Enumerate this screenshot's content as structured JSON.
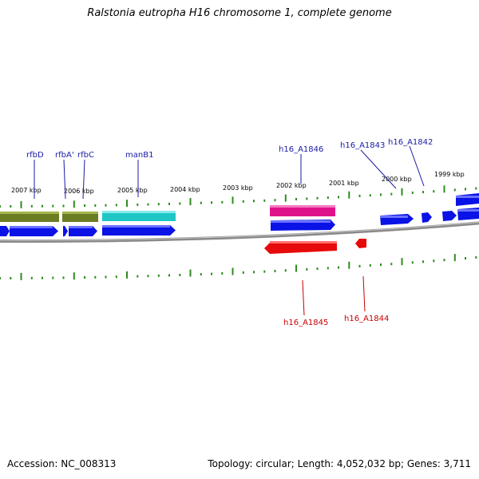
{
  "title": "Ralstonia eutropha H16 chromosome 1, complete genome",
  "footer": {
    "accession": "Accession: NC_008313",
    "summary": "Topology: circular; Length: 4,052,032 bp; Genes: 3,711"
  },
  "colors": {
    "backbone": "#8a8a8a",
    "tick": "#2e8b1e",
    "forward_label": "#1a1aa6",
    "reverse_label": "#c80000",
    "forward_cds": "#0a12e6",
    "reverse_cds": "#e60a0a",
    "olive_feature": "#6b7d22",
    "cyan_feature": "#1fc6c6",
    "pink_feature": "#e0128a"
  },
  "kbp_labels": [
    "2007 kbp",
    "2006 kbp",
    "2005 kbp",
    "2004 kbp",
    "2003 kbp",
    "2002 kbp",
    "2001 kbp",
    "2000 kbp",
    "1999 kbp"
  ],
  "forward_gene_labels": [
    "rfbD",
    "rfbA'",
    "rfbC",
    "manB1",
    "h16_A1846",
    "h16_A1843",
    "h16_A1842"
  ],
  "reverse_gene_labels": [
    "h16_A1845",
    "h16_A1844"
  ]
}
